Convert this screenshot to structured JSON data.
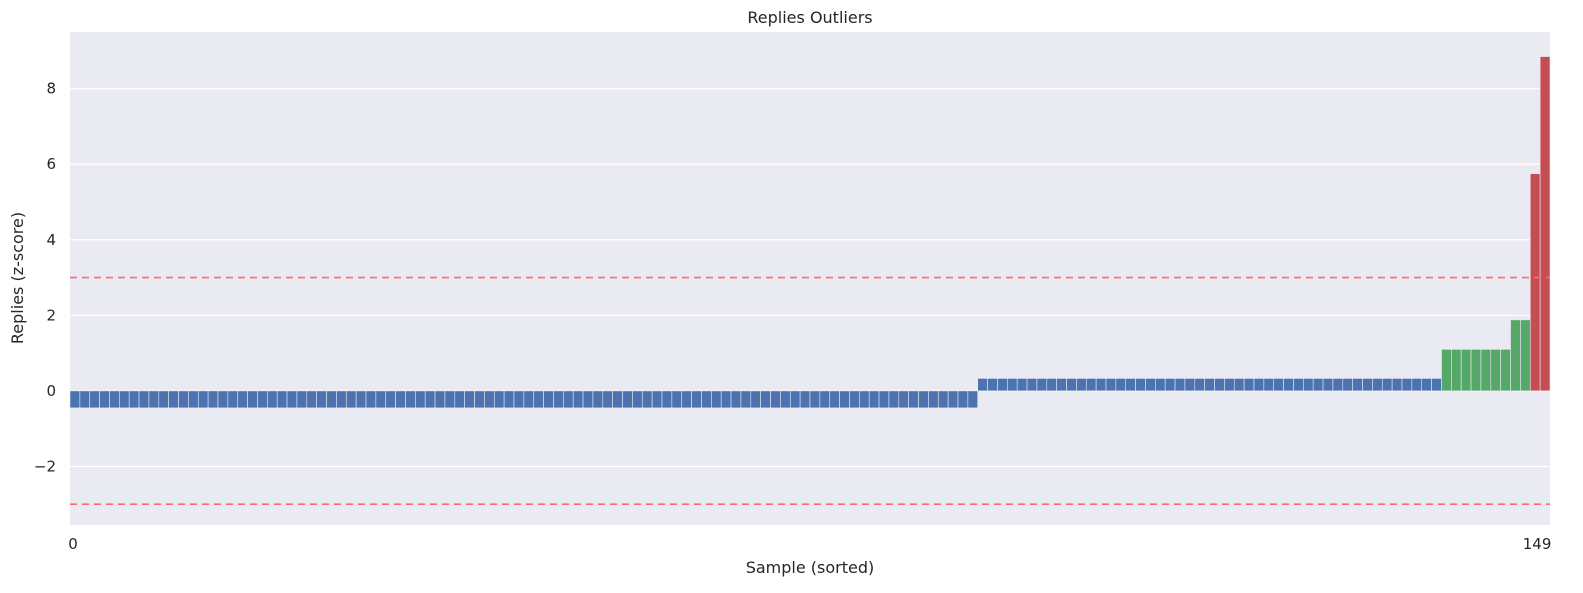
{
  "chart_data": {
    "type": "bar",
    "title": "Replies Outliers",
    "xlabel": "Sample (sorted)",
    "ylabel": "Replies (z-score)",
    "xticks": [
      "0",
      "149"
    ],
    "yticks": [
      -2,
      0,
      2,
      4,
      6,
      8
    ],
    "ylim": [
      -3.55,
      9.5
    ],
    "grid": true,
    "thresholds": [
      3,
      -3
    ],
    "colors": {
      "normal": "#4c72b0",
      "moderate": "#55a868",
      "outlier": "#c44e52",
      "threshold": "#ff6b6b",
      "background": "#eaeaf2",
      "grid": "#ffffff"
    },
    "groups": [
      {
        "class": "normal",
        "count": 92,
        "value": -0.45
      },
      {
        "class": "normal",
        "count": 47,
        "value": 0.33
      },
      {
        "class": "moderate",
        "count": 7,
        "value": 1.1
      },
      {
        "class": "moderate",
        "count": 2,
        "value": 1.88
      },
      {
        "class": "outlier",
        "count": 1,
        "value": 5.75
      },
      {
        "class": "outlier",
        "count": 1,
        "value": 8.85
      }
    ]
  }
}
